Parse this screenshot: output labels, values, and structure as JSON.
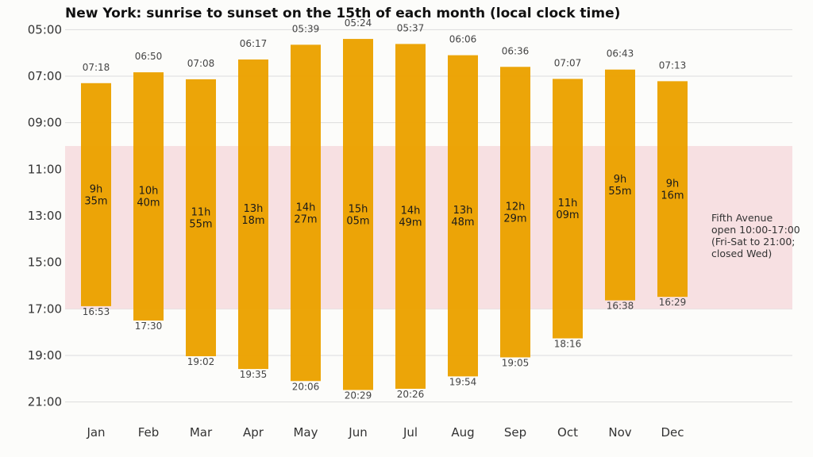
{
  "chart_data": {
    "type": "bar",
    "title": "New York: sunrise to sunset on the 15th of each month (local clock time)",
    "xlabel": "",
    "ylabel": "",
    "categories": [
      "Jan",
      "Feb",
      "Mar",
      "Apr",
      "May",
      "Jun",
      "Jul",
      "Aug",
      "Sep",
      "Oct",
      "Nov",
      "Dec"
    ],
    "sunrise": [
      "07:18",
      "06:50",
      "07:08",
      "06:17",
      "05:39",
      "05:24",
      "05:37",
      "06:06",
      "06:36",
      "07:07",
      "06:43",
      "07:13"
    ],
    "sunset": [
      "16:53",
      "17:30",
      "19:02",
      "19:35",
      "20:06",
      "20:29",
      "20:26",
      "19:54",
      "19:05",
      "18:16",
      "16:38",
      "16:29"
    ],
    "daylight": [
      [
        "9h",
        "35m"
      ],
      [
        "10h",
        "40m"
      ],
      [
        "11h",
        "55m"
      ],
      [
        "13h",
        "18m"
      ],
      [
        "14h",
        "27m"
      ],
      [
        "15h",
        "05m"
      ],
      [
        "14h",
        "49m"
      ],
      [
        "13h",
        "48m"
      ],
      [
        "12h",
        "29m"
      ],
      [
        "11h",
        "09m"
      ],
      [
        "9h",
        "55m"
      ],
      [
        "9h",
        "16m"
      ]
    ],
    "yticks": [
      "05:00",
      "07:00",
      "09:00",
      "11:00",
      "13:00",
      "15:00",
      "17:00",
      "19:00",
      "21:00"
    ],
    "ylim": [
      "04:00",
      "22:00"
    ],
    "y_inverted": true,
    "band": {
      "from": "10:00",
      "to": "17:00",
      "label": [
        "Fifth Avenue",
        "open 10:00-17:00",
        "(Fri-Sat to 21:00;",
        "closed Wed)"
      ]
    },
    "grid": "horizontal",
    "colors": {
      "bar": "#eba200",
      "band": "#f7e0e2",
      "grid": "#dddddd"
    }
  }
}
